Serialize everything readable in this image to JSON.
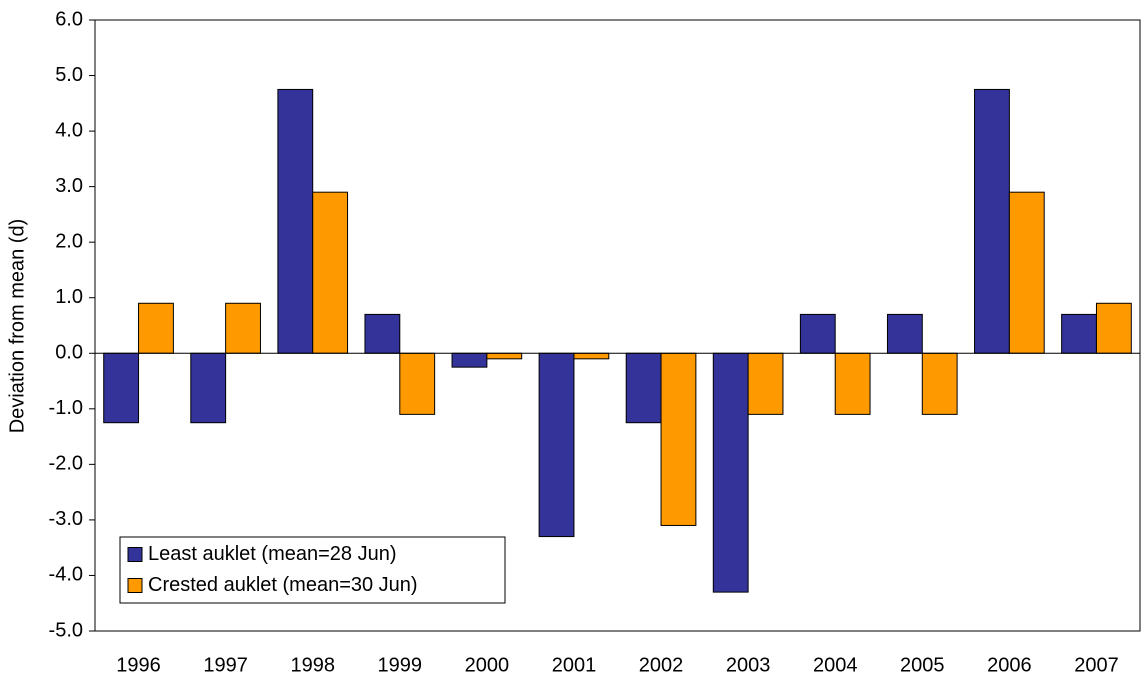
{
  "chart_data": {
    "type": "bar",
    "ylabel": "Deviation from mean (d)",
    "categories": [
      "1996",
      "1997",
      "1998",
      "1999",
      "2000",
      "2001",
      "2002",
      "2003",
      "2004",
      "2005",
      "2006",
      "2007"
    ],
    "series": [
      {
        "name": "Least auklet (mean=28 Jun)",
        "color": "#333399",
        "values": [
          -1.25,
          -1.25,
          4.75,
          0.7,
          -0.25,
          -3.3,
          -1.25,
          -4.3,
          0.7,
          0.7,
          4.75,
          0.7
        ]
      },
      {
        "name": "Crested auklet (mean=30 Jun)",
        "color": "#ff9900",
        "values": [
          0.9,
          0.9,
          2.9,
          -1.1,
          -0.1,
          -0.1,
          -3.1,
          -1.1,
          -1.1,
          -1.1,
          2.9,
          0.9
        ]
      }
    ],
    "ylim": [
      -5,
      6
    ],
    "yticks": [
      {
        "value": -5,
        "label": "-5.0"
      },
      {
        "value": -4,
        "label": "-4.0"
      },
      {
        "value": -3,
        "label": "-3.0"
      },
      {
        "value": -2,
        "label": "-2.0"
      },
      {
        "value": -1,
        "label": "-1.0"
      },
      {
        "value": 0,
        "label": "0.0"
      },
      {
        "value": 1,
        "label": "1.0"
      },
      {
        "value": 2,
        "label": "2.0"
      },
      {
        "value": 3,
        "label": "3.0"
      },
      {
        "value": 4,
        "label": "4.0"
      },
      {
        "value": 5,
        "label": "5.0"
      },
      {
        "value": 6,
        "label": "6.0"
      }
    ],
    "grid": false,
    "legend": "lower left"
  }
}
